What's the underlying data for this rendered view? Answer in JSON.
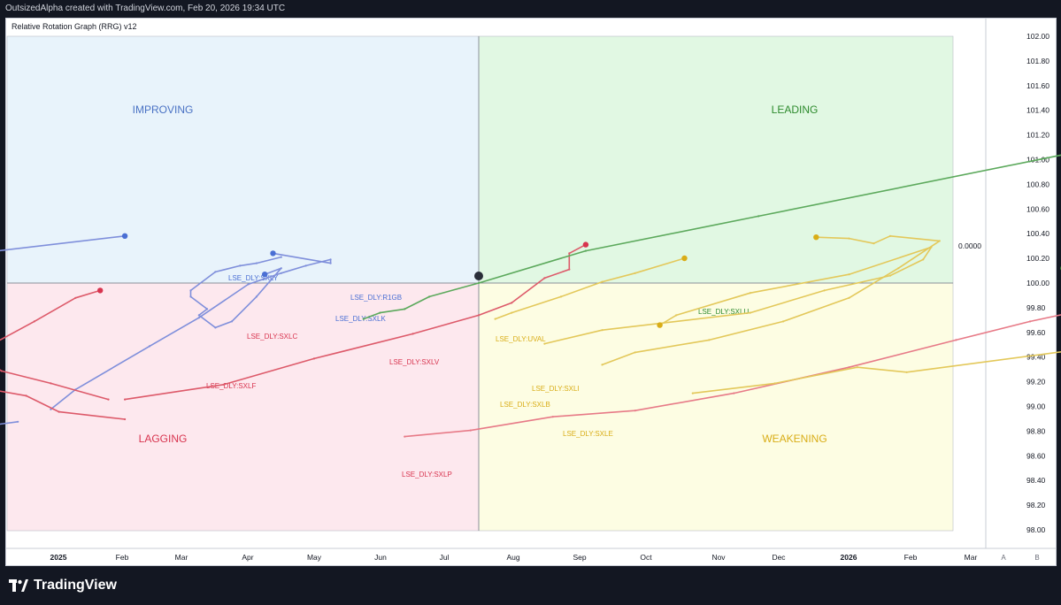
{
  "header": {
    "caption": "OutsizedAlpha created with TradingView.com, Feb 20, 2026 19:34 UTC"
  },
  "chart": {
    "title": "Relative Rotation Graph (RRG) v12",
    "center_price_label": "0.0000"
  },
  "footer": {
    "brand": "TradingView",
    "scale_buttons": [
      "A",
      "B"
    ]
  },
  "chart_data": {
    "type": "line",
    "title": "Relative Rotation Graph (RRG) v12",
    "x_axis": {
      "ticks": [
        "2025",
        "Feb",
        "Mar",
        "Apr",
        "May",
        "Jun",
        "Jul",
        "Aug",
        "Sep",
        "Oct",
        "Nov",
        "Dec",
        "2026",
        "Feb",
        "Mar"
      ]
    },
    "y_axis": {
      "ticks": [
        102.0,
        101.8,
        101.6,
        101.4,
        101.2,
        101.0,
        100.8,
        100.6,
        100.4,
        100.2,
        100.0,
        99.8,
        99.6,
        99.4,
        99.2,
        99.0,
        98.8,
        98.6,
        98.4,
        98.2,
        98.0
      ],
      "range": [
        97.85,
        102.15
      ]
    },
    "quadrants": [
      {
        "name": "IMPROVING",
        "color": "#4a72c4",
        "fill": "#e8f3fb"
      },
      {
        "name": "LEADING",
        "color": "#2e8b2e",
        "fill": "#e1f8e3"
      },
      {
        "name": "LAGGING",
        "color": "#d8344f",
        "fill": "#fde8ee"
      },
      {
        "name": "WEAKENING",
        "color": "#d9ad17",
        "fill": "#fdfde3"
      }
    ],
    "center_point": {
      "x": 100.55,
      "y": 100.06
    },
    "series": [
      {
        "name": "LSE_DLY:SXLY",
        "color": "#7f8fdb",
        "head_color": "#4a6fd4",
        "points": [
          [
            97.75,
            98.94
          ],
          [
            96.85,
            98.78
          ],
          [
            96.35,
            98.91
          ],
          [
            96.1,
            98.98
          ],
          [
            95.95,
            99.22
          ],
          [
            96.2,
            99.65
          ],
          [
            96.4,
            99.75
          ],
          [
            96.95,
            100.1
          ],
          [
            97.5,
            100.3
          ],
          [
            98.4,
            100.44
          ]
        ]
      },
      {
        "name": "LSE_DLY:R1GB",
        "color": "#7f8fdb",
        "head_color": "#4a6fd4",
        "points": [
          [
            99.35,
            100.27
          ],
          [
            99.2,
            100.22
          ],
          [
            99.1,
            100.2
          ],
          [
            98.95,
            100.15
          ],
          [
            98.8,
            100.0
          ],
          [
            98.8,
            99.95
          ],
          [
            98.9,
            99.85
          ],
          [
            98.85,
            99.8
          ],
          [
            98.95,
            99.7
          ],
          [
            99.05,
            99.75
          ],
          [
            99.2,
            99.95
          ],
          [
            99.35,
            100.18
          ],
          [
            99.25,
            100.13
          ]
        ]
      },
      {
        "name": "LSE_DLY:SXLK",
        "color": "#7f8fdb",
        "head_color": "#4a6fd4",
        "points": [
          [
            97.95,
            99.04
          ],
          [
            98.1,
            99.2
          ],
          [
            98.55,
            99.55
          ],
          [
            98.85,
            99.78
          ],
          [
            99.15,
            100.05
          ],
          [
            99.35,
            100.14
          ],
          [
            99.5,
            100.2
          ],
          [
            99.65,
            100.25
          ],
          [
            99.65,
            100.22
          ],
          [
            99.3,
            100.3
          ]
        ]
      },
      {
        "name": "LSE_DLY:SXLC",
        "color": "#dd5a6a",
        "head_color": "#d8344f",
        "points": [
          [
            98.3,
            99.12
          ],
          [
            97.95,
            99.25
          ],
          [
            97.65,
            99.35
          ],
          [
            97.55,
            99.45
          ],
          [
            97.6,
            99.57
          ],
          [
            97.85,
            99.75
          ],
          [
            98.1,
            99.94
          ],
          [
            98.25,
            100.0
          ]
        ]
      },
      {
        "name": "LSE_DLY:SXLF",
        "color": "#dd5a6a",
        "head_color": "#d8344f",
        "points": [
          [
            98.4,
            98.96
          ],
          [
            98.0,
            99.02
          ],
          [
            97.8,
            99.15
          ],
          [
            97.5,
            99.22
          ],
          [
            97.3,
            99.35
          ],
          [
            97.3,
            99.42
          ],
          [
            97.4,
            99.55
          ],
          [
            97.45,
            99.57
          ]
        ]
      },
      {
        "name": "LSE_DLY:SXLV",
        "color": "#dd5a6a",
        "head_color": "#d8344f",
        "points": [
          [
            98.4,
            99.12
          ],
          [
            99.0,
            99.24
          ],
          [
            99.55,
            99.45
          ],
          [
            100.15,
            99.65
          ],
          [
            100.55,
            99.8
          ],
          [
            100.75,
            99.9
          ],
          [
            100.95,
            100.1
          ],
          [
            101.1,
            100.17
          ],
          [
            101.1,
            100.3
          ],
          [
            101.2,
            100.37
          ]
        ]
      },
      {
        "name": "LSE_DLY:SXLP",
        "color": "#e77a87",
        "head_color": "#d8344f",
        "points": [
          [
            100.1,
            98.82
          ],
          [
            100.5,
            98.87
          ],
          [
            101.0,
            98.98
          ],
          [
            101.5,
            99.03
          ],
          [
            102.1,
            99.17
          ],
          [
            102.8,
            99.38
          ],
          [
            103.45,
            99.6
          ],
          [
            103.9,
            99.75
          ],
          [
            104.25,
            99.85
          ],
          [
            104.75,
            99.95
          ],
          [
            105.35,
            100.15
          ],
          [
            105.95,
            100.38
          ],
          [
            106.25,
            100.6
          ]
        ]
      },
      {
        "name": "LSE_DLY:SXLU",
        "color": "#5ca95c",
        "head_color": "#2e8b2e",
        "points": [
          [
            99.85,
            99.77
          ],
          [
            99.95,
            99.82
          ],
          [
            100.1,
            99.85
          ],
          [
            100.25,
            99.95
          ],
          [
            100.55,
            100.06
          ],
          [
            101.2,
            100.32
          ],
          [
            102.25,
            100.6
          ],
          [
            104.3,
            101.15
          ],
          [
            105.4,
            101.33
          ],
          [
            105.3,
            101.24
          ],
          [
            104.95,
            100.9
          ],
          [
            104.55,
            100.47
          ],
          [
            104.1,
            100.18
          ]
        ]
      },
      {
        "name": "LSE_DLY:UVAL",
        "color": "#e3c85a",
        "head_color": "#d9ad17",
        "points": [
          [
            100.65,
            99.77
          ],
          [
            100.75,
            99.82
          ],
          [
            101.05,
            99.95
          ],
          [
            101.3,
            100.07
          ],
          [
            101.5,
            100.14
          ],
          [
            101.8,
            100.26
          ]
        ]
      },
      {
        "name": "LSE_DLY:SXLI",
        "color": "#e3c85a",
        "head_color": "#d9ad17",
        "points": [
          [
            101.3,
            99.4
          ],
          [
            101.5,
            99.5
          ],
          [
            101.95,
            99.6
          ],
          [
            102.4,
            99.75
          ],
          [
            102.8,
            99.94
          ],
          [
            103.1,
            100.18
          ],
          [
            103.35,
            100.4
          ],
          [
            103.05,
            100.44
          ],
          [
            102.95,
            100.38
          ],
          [
            102.8,
            100.42
          ],
          [
            102.6,
            100.43
          ]
        ]
      },
      {
        "name": "LSE_DLY:SXLB",
        "color": "#e3c85a",
        "head_color": "#d9ad17",
        "points": [
          [
            100.95,
            99.57
          ],
          [
            101.3,
            99.68
          ],
          [
            102.2,
            99.82
          ],
          [
            102.65,
            100.0
          ],
          [
            103.05,
            100.12
          ],
          [
            103.25,
            100.25
          ],
          [
            103.3,
            100.35
          ],
          [
            102.8,
            100.13
          ],
          [
            102.2,
            99.98
          ],
          [
            101.75,
            99.8
          ],
          [
            101.65,
            99.72
          ]
        ]
      },
      {
        "name": "LSE_DLY:SXLE",
        "color": "#e3c85a",
        "head_color": "#d9ad17",
        "points": [
          [
            101.85,
            99.17
          ],
          [
            102.35,
            99.25
          ],
          [
            102.85,
            99.38
          ],
          [
            103.15,
            99.34
          ],
          [
            104.35,
            99.55
          ],
          [
            104.85,
            99.72
          ],
          [
            105.5,
            99.97
          ],
          [
            106.05,
            100.05
          ],
          [
            106.35,
            100.11
          ],
          [
            106.25,
            100.06
          ]
        ]
      }
    ]
  }
}
